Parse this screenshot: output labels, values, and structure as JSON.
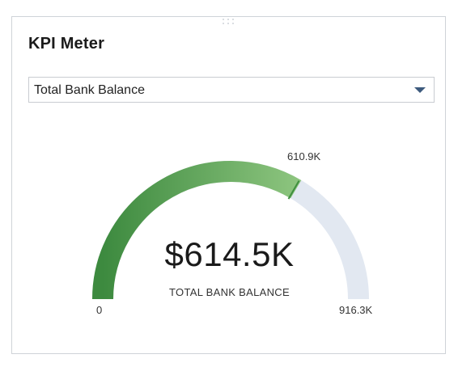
{
  "widget": {
    "title": "KPI Meter"
  },
  "selector": {
    "selected": "Total Bank Balance"
  },
  "gauge": {
    "value_text": "$614.5K",
    "caption": "TOTAL BANK BALANCE",
    "min_label": "0",
    "max_label": "916.3K",
    "target_label": "610.9K",
    "min": 0,
    "max": 916300,
    "value": 614500,
    "target": 610900,
    "colors": {
      "fill_start": "#3d8a3f",
      "fill_end": "#8cc47e",
      "track": "#e2e8f1",
      "target_marker": "#3f8f3f"
    }
  }
}
